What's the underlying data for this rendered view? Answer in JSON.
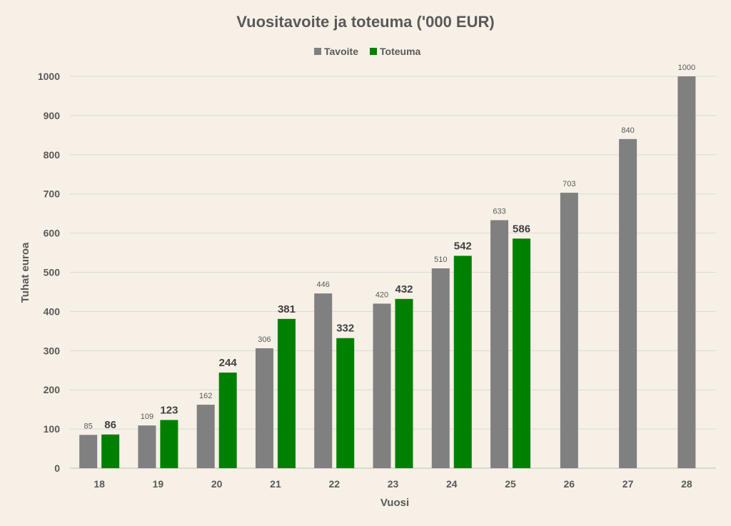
{
  "chart_data": {
    "type": "bar",
    "title": "Vuositavoite ja toteuma ('000 EUR)",
    "xlabel": "Vuosi",
    "ylabel": "Tuhat euroa",
    "categories": [
      "18",
      "19",
      "20",
      "21",
      "22",
      "23",
      "24",
      "25",
      "26",
      "27",
      "28"
    ],
    "series": [
      {
        "name": "Tavoite",
        "color": "#808080",
        "values": [
          85,
          109,
          162,
          306,
          446,
          420,
          510,
          633,
          703,
          840,
          1000
        ]
      },
      {
        "name": "Toteuma",
        "color": "#008000",
        "values": [
          86,
          123,
          244,
          381,
          332,
          432,
          542,
          586,
          null,
          null,
          null
        ]
      }
    ],
    "ylim": [
      0,
      1000
    ],
    "yticks": [
      0,
      100,
      200,
      300,
      400,
      500,
      600,
      700,
      800,
      900,
      1000
    ],
    "grid": true,
    "legend_position": "top"
  }
}
